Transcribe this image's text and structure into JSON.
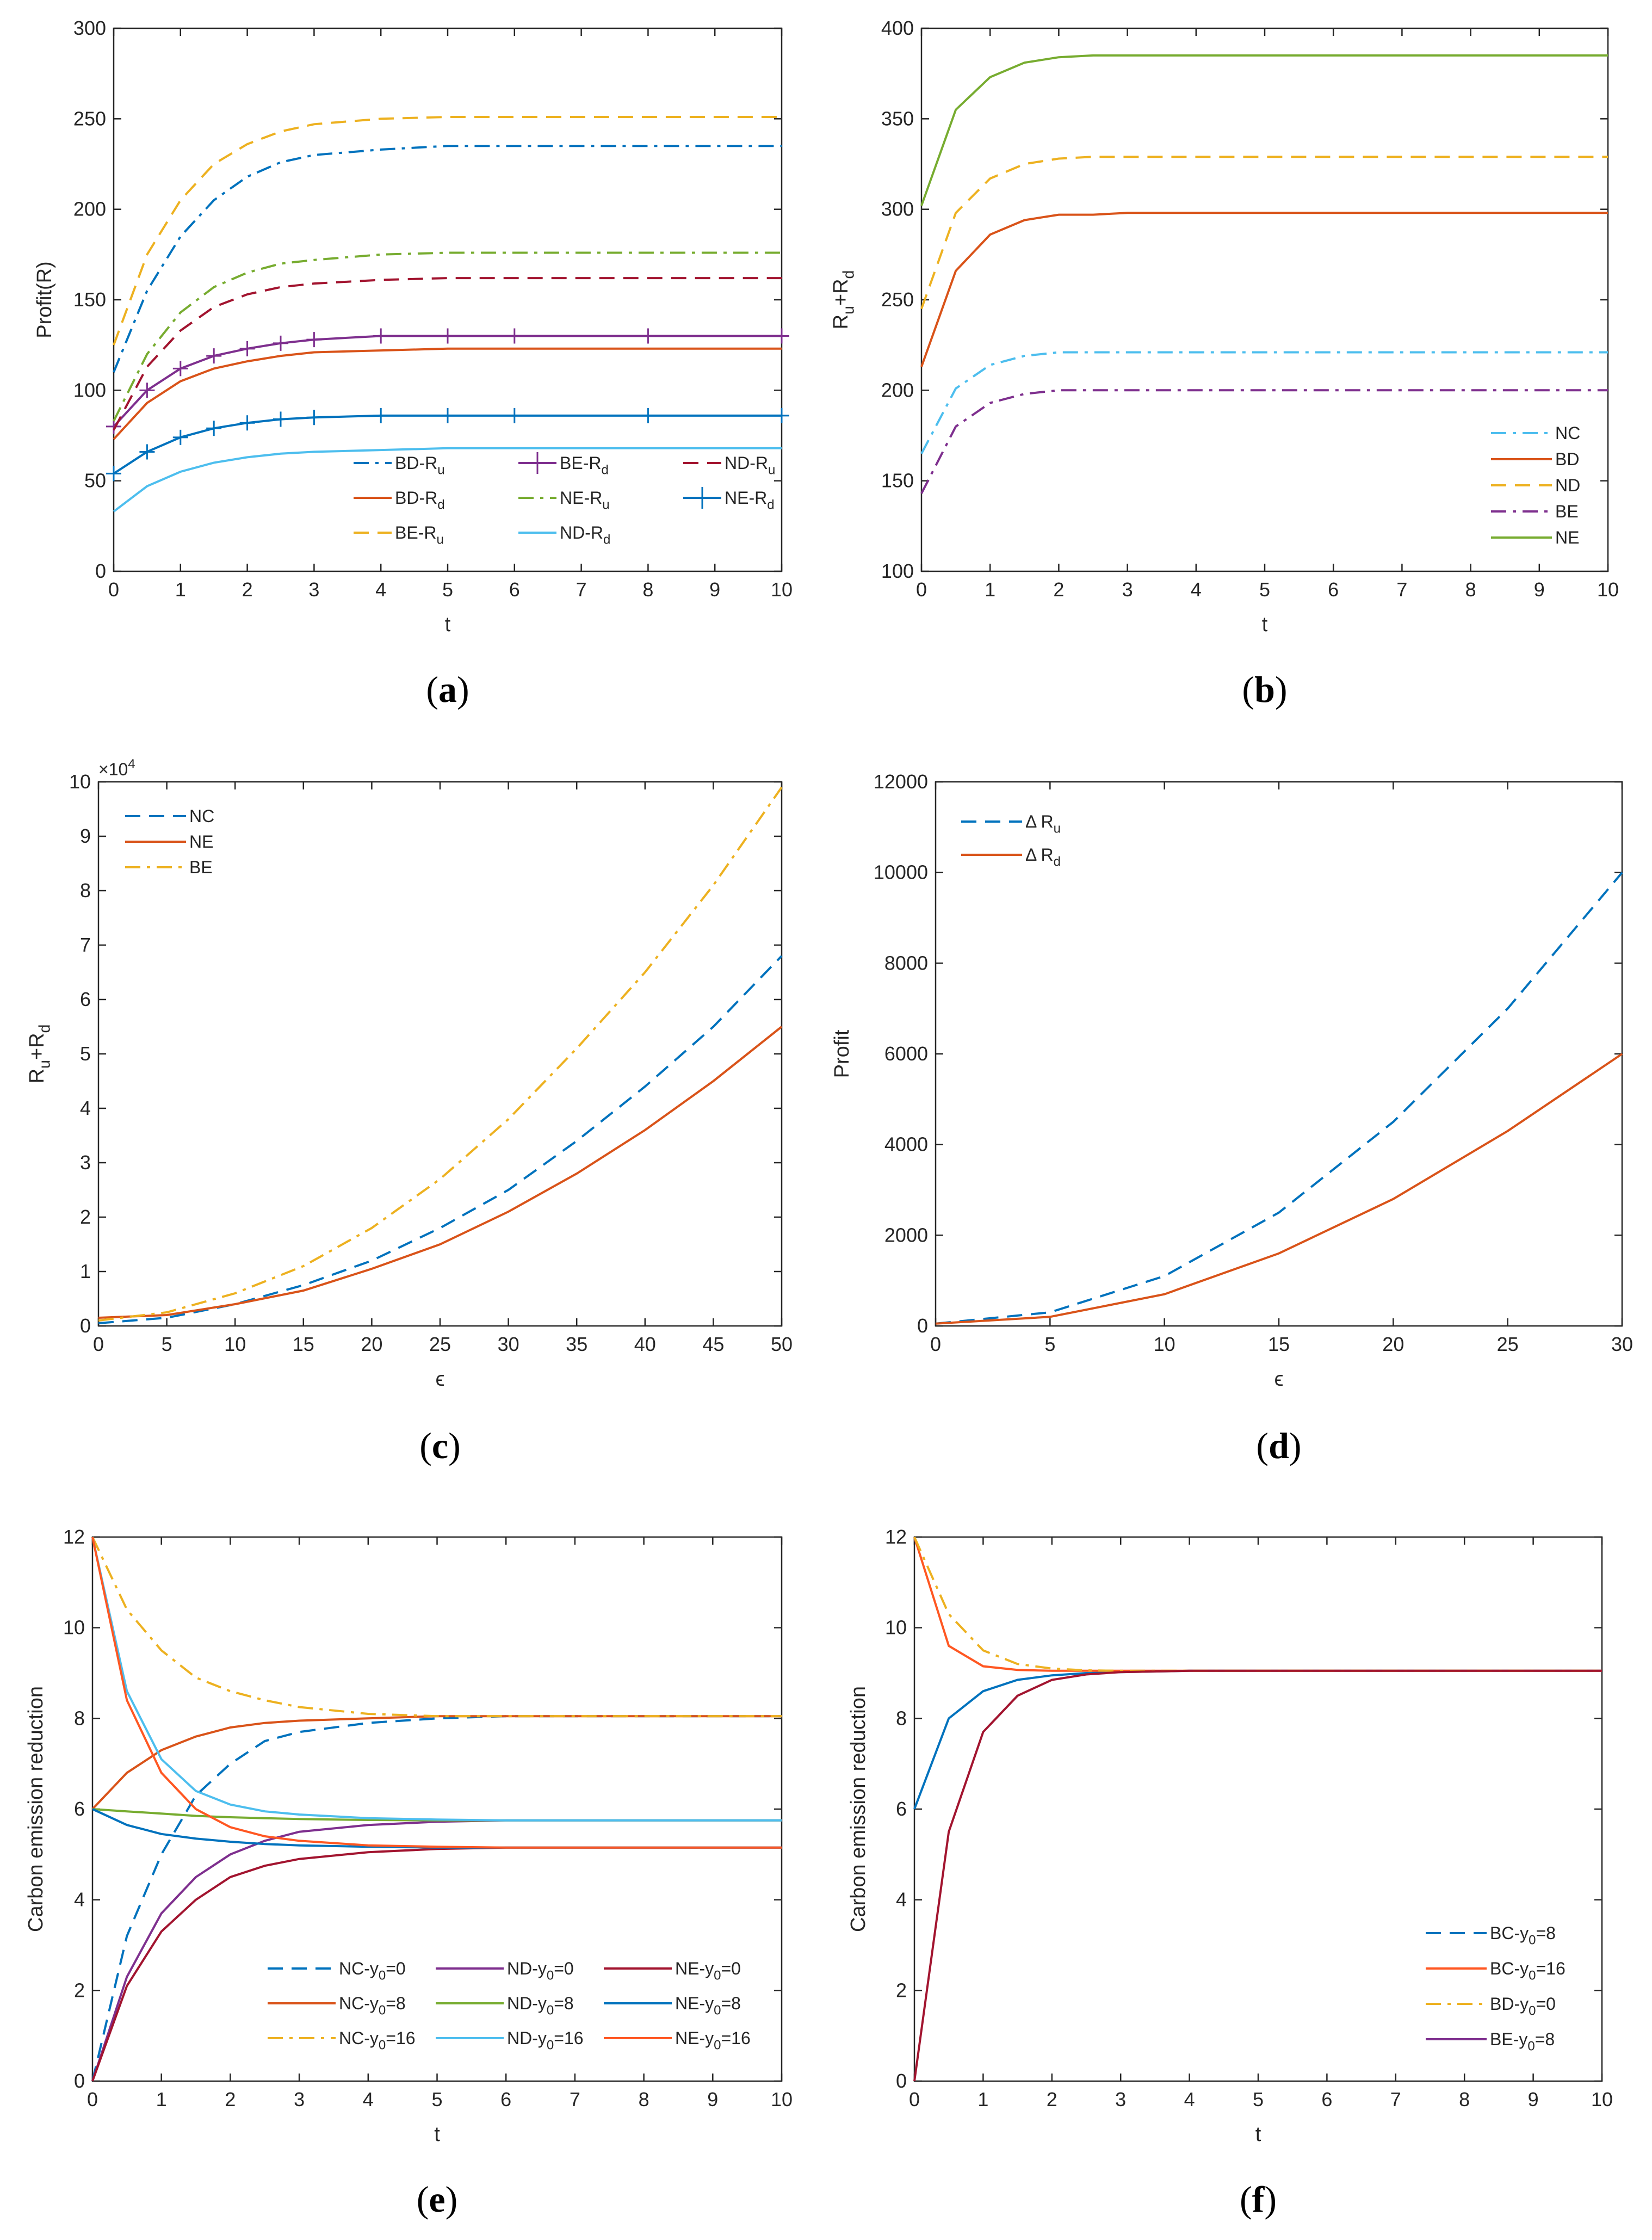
{
  "chart_data": [
    {
      "id": "a",
      "type": "line",
      "caption": "(a)",
      "caption_bold": "a",
      "xlabel": "t",
      "ylabel": "Profit(R)",
      "xlim": [
        0,
        10
      ],
      "ylim": [
        0,
        300
      ],
      "xticks": [
        0,
        1,
        2,
        3,
        4,
        5,
        6,
        7,
        8,
        9,
        10
      ],
      "yticks": [
        0,
        50,
        100,
        150,
        200,
        250,
        300
      ],
      "legend_placement": "bottom-right",
      "x": [
        0,
        0.5,
        1,
        1.5,
        2,
        2.5,
        3,
        4,
        5,
        6,
        8,
        10
      ],
      "series": [
        {
          "name": "BD-R_u",
          "color": "#0072BD",
          "style": "dashdot",
          "values": [
            110,
            155,
            185,
            205,
            218,
            226,
            230,
            233,
            235,
            235,
            235,
            235
          ]
        },
        {
          "name": "BE-R_d",
          "color": "#7E2F8E",
          "style": "solid",
          "marker": "+",
          "values": [
            80,
            100,
            112,
            119,
            123,
            126,
            128,
            130,
            130,
            130,
            130,
            130
          ]
        },
        {
          "name": "ND-R_u",
          "color": "#A2142F",
          "style": "dashed",
          "values": [
            78,
            113,
            133,
            146,
            153,
            157,
            159,
            161,
            162,
            162,
            162,
            162
          ]
        },
        {
          "name": "BD-R_d",
          "color": "#D95319",
          "style": "solid",
          "values": [
            73,
            93,
            105,
            112,
            116,
            119,
            121,
            122,
            123,
            123,
            123,
            123
          ]
        },
        {
          "name": "NE-R_u",
          "color": "#77AC30",
          "style": "dashdot",
          "values": [
            83,
            120,
            143,
            157,
            165,
            170,
            172,
            175,
            176,
            176,
            176,
            176
          ]
        },
        {
          "name": "NE-R_d",
          "color": "#0072BD",
          "style": "solid",
          "marker": "+",
          "values": [
            54,
            66,
            74,
            79,
            82,
            84,
            85,
            86,
            86,
            86,
            86,
            86
          ]
        },
        {
          "name": "BE-R_u",
          "color": "#EDB120",
          "style": "dashed",
          "values": [
            125,
            175,
            205,
            225,
            236,
            243,
            247,
            250,
            251,
            251,
            251,
            251
          ]
        },
        {
          "name": "ND-R_d",
          "color": "#4DBEEE",
          "style": "solid",
          "values": [
            33,
            47,
            55,
            60,
            63,
            65,
            66,
            67,
            68,
            68,
            68,
            68
          ]
        }
      ]
    },
    {
      "id": "b",
      "type": "line",
      "caption": "(b)",
      "caption_bold": "b",
      "xlabel": "t",
      "ylabel": "R_u+R_d",
      "xlim": [
        0,
        10
      ],
      "ylim": [
        100,
        400
      ],
      "xticks": [
        0,
        1,
        2,
        3,
        4,
        5,
        6,
        7,
        8,
        9,
        10
      ],
      "yticks": [
        100,
        150,
        200,
        250,
        300,
        350,
        400
      ],
      "legend_placement": "bottom-right",
      "x": [
        0,
        0.5,
        1,
        1.5,
        2,
        2.5,
        3,
        4,
        5,
        6,
        8,
        10
      ],
      "series": [
        {
          "name": "NC",
          "color": "#4DBEEE",
          "style": "dashdot",
          "values": [
            165,
            201,
            214,
            219,
            221,
            221,
            221,
            221,
            221,
            221,
            221,
            221
          ]
        },
        {
          "name": "BD",
          "color": "#D95319",
          "style": "solid",
          "values": [
            213,
            266,
            286,
            294,
            297,
            297,
            298,
            298,
            298,
            298,
            298,
            298
          ]
        },
        {
          "name": "ND",
          "color": "#EDB120",
          "style": "dashed",
          "values": [
            245,
            298,
            317,
            325,
            328,
            329,
            329,
            329,
            329,
            329,
            329,
            329
          ]
        },
        {
          "name": "BE",
          "color": "#7E2F8E",
          "style": "dashdot",
          "values": [
            143,
            180,
            193,
            198,
            200,
            200,
            200,
            200,
            200,
            200,
            200,
            200
          ]
        },
        {
          "name": "NE",
          "color": "#77AC30",
          "style": "solid",
          "values": [
            302,
            355,
            373,
            381,
            384,
            385,
            385,
            385,
            385,
            385,
            385,
            385
          ]
        }
      ]
    },
    {
      "id": "c",
      "type": "line",
      "caption": "(c)",
      "caption_bold": "c",
      "xlabel": "ϵ",
      "ylabel": "R_u+R_d",
      "multiplier": "×10^4",
      "xlim": [
        0,
        50
      ],
      "ylim": [
        0,
        10
      ],
      "xticks": [
        0,
        5,
        10,
        15,
        20,
        25,
        30,
        35,
        40,
        45,
        50
      ],
      "yticks": [
        0,
        1,
        2,
        3,
        4,
        5,
        6,
        7,
        8,
        9,
        10
      ],
      "legend_placement": "top-left",
      "x": [
        0,
        5,
        10,
        15,
        20,
        25,
        30,
        35,
        40,
        45,
        50
      ],
      "series": [
        {
          "name": "NC",
          "color": "#0072BD",
          "style": "dashed",
          "values": [
            0.05,
            0.15,
            0.4,
            0.75,
            1.2,
            1.8,
            2.5,
            3.4,
            4.4,
            5.5,
            6.8
          ]
        },
        {
          "name": "NE",
          "color": "#D95319",
          "style": "solid",
          "values": [
            0.15,
            0.2,
            0.4,
            0.65,
            1.05,
            1.5,
            2.1,
            2.8,
            3.6,
            4.5,
            5.5
          ]
        },
        {
          "name": "BE",
          "color": "#EDB120",
          "style": "dashdot",
          "values": [
            0.1,
            0.25,
            0.6,
            1.1,
            1.8,
            2.7,
            3.8,
            5.1,
            6.5,
            8.1,
            9.9
          ]
        }
      ]
    },
    {
      "id": "d",
      "type": "line",
      "caption": "(d)",
      "caption_bold": "d",
      "xlabel": "ϵ",
      "ylabel": "Profit",
      "xlim": [
        0,
        30
      ],
      "ylim": [
        0,
        12000
      ],
      "xticks": [
        0,
        5,
        10,
        15,
        20,
        25,
        30
      ],
      "yticks": [
        0,
        2000,
        4000,
        6000,
        8000,
        10000,
        12000
      ],
      "legend_placement": "top-left",
      "x": [
        0,
        5,
        10,
        15,
        20,
        25,
        30
      ],
      "series": [
        {
          "name": "Δ R_u",
          "color": "#0072BD",
          "style": "dashed",
          "values": [
            50,
            300,
            1100,
            2500,
            4500,
            7000,
            10000
          ]
        },
        {
          "name": "Δ R_d",
          "color": "#D95319",
          "style": "solid",
          "values": [
            50,
            200,
            700,
            1600,
            2800,
            4300,
            6000
          ]
        }
      ]
    },
    {
      "id": "e",
      "type": "line",
      "caption": "(e)",
      "caption_bold": "e",
      "xlabel": "t",
      "ylabel": "Carbon emission reduction",
      "xlim": [
        0,
        10
      ],
      "ylim": [
        0,
        12
      ],
      "xticks": [
        0,
        1,
        2,
        3,
        4,
        5,
        6,
        7,
        8,
        9,
        10
      ],
      "yticks": [
        0,
        2,
        4,
        6,
        8,
        10,
        12
      ],
      "legend_placement": "bottom-right",
      "x": [
        0,
        0.5,
        1,
        1.5,
        2,
        2.5,
        3,
        4,
        5,
        6,
        8,
        10
      ],
      "series": [
        {
          "name": "NC-y_0=0",
          "color": "#0072BD",
          "style": "dashed",
          "values": [
            0,
            3.2,
            5,
            6.3,
            7.0,
            7.5,
            7.7,
            7.9,
            8.0,
            8.05,
            8.05,
            8.05
          ]
        },
        {
          "name": "ND-y_0=0",
          "color": "#7E2F8E",
          "style": "solid",
          "values": [
            0,
            2.3,
            3.7,
            4.5,
            5.0,
            5.3,
            5.5,
            5.65,
            5.72,
            5.75,
            5.75,
            5.75
          ]
        },
        {
          "name": "NE-y_0=0",
          "color": "#A2142F",
          "style": "solid",
          "values": [
            0,
            2.1,
            3.3,
            4.0,
            4.5,
            4.75,
            4.9,
            5.05,
            5.12,
            5.15,
            5.15,
            5.15
          ]
        },
        {
          "name": "NC-y_0=8",
          "color": "#D95319",
          "style": "solid",
          "values": [
            6,
            6.8,
            7.3,
            7.6,
            7.8,
            7.9,
            7.95,
            8.0,
            8.05,
            8.05,
            8.05,
            8.05
          ]
        },
        {
          "name": "ND-y_0=8",
          "color": "#77AC30",
          "style": "solid",
          "values": [
            6,
            5.95,
            5.9,
            5.85,
            5.82,
            5.8,
            5.78,
            5.76,
            5.75,
            5.75,
            5.75,
            5.75
          ]
        },
        {
          "name": "NE-y_0=8",
          "color": "#0072BD",
          "style": "solid",
          "values": [
            6,
            5.65,
            5.45,
            5.35,
            5.28,
            5.23,
            5.2,
            5.17,
            5.15,
            5.15,
            5.15,
            5.15
          ]
        },
        {
          "name": "NC-y_0=16",
          "color": "#EDB120",
          "style": "dashdot",
          "values": [
            12,
            10.4,
            9.5,
            8.9,
            8.6,
            8.4,
            8.25,
            8.1,
            8.05,
            8.05,
            8.05,
            8.05
          ]
        },
        {
          "name": "ND-y_0=16",
          "color": "#4DBEEE",
          "style": "solid",
          "values": [
            12,
            8.6,
            7.1,
            6.4,
            6.1,
            5.95,
            5.88,
            5.8,
            5.77,
            5.75,
            5.75,
            5.75
          ]
        },
        {
          "name": "NE-y_0=16",
          "color": "#FF5722",
          "style": "solid",
          "values": [
            12,
            8.4,
            6.8,
            6.0,
            5.6,
            5.4,
            5.3,
            5.2,
            5.17,
            5.15,
            5.15,
            5.15
          ]
        }
      ]
    },
    {
      "id": "f",
      "type": "line",
      "caption": "(f)",
      "caption_bold": "f",
      "xlabel": "t",
      "ylabel": "Carbon emission reduction",
      "xlim": [
        0,
        10
      ],
      "ylim": [
        0,
        12
      ],
      "xticks": [
        0,
        1,
        2,
        3,
        4,
        5,
        6,
        7,
        8,
        9,
        10
      ],
      "yticks": [
        0,
        2,
        4,
        6,
        8,
        10,
        12
      ],
      "legend_placement": "bottom-right",
      "x": [
        0,
        0.5,
        1,
        1.5,
        2,
        2.5,
        3,
        4,
        5,
        6,
        8,
        10
      ],
      "series": [
        {
          "name": "BC-y_0=8",
          "color": "#0072BD",
          "style": "solid",
          "legend_style": "dashed",
          "values": [
            6,
            8.0,
            8.6,
            8.85,
            8.95,
            9.0,
            9.02,
            9.05,
            9.05,
            9.05,
            9.05,
            9.05
          ]
        },
        {
          "name": "BC-y_0=16",
          "color": "#FF5722",
          "style": "solid",
          "values": [
            12,
            9.6,
            9.15,
            9.07,
            9.05,
            9.05,
            9.05,
            9.05,
            9.05,
            9.05,
            9.05,
            9.05
          ]
        },
        {
          "name": "BD-y_0=0",
          "color": "#EDB120",
          "style": "dashdot",
          "values": [
            12,
            10.3,
            9.5,
            9.2,
            9.1,
            9.06,
            9.05,
            9.05,
            9.05,
            9.05,
            9.05,
            9.05
          ]
        },
        {
          "name": "BE-y_0=8",
          "color": "#A2142F",
          "legend_color": "#7E2F8E",
          "style": "solid",
          "values": [
            0,
            5.5,
            7.7,
            8.5,
            8.85,
            8.97,
            9.02,
            9.05,
            9.05,
            9.05,
            9.05,
            9.05
          ]
        }
      ]
    }
  ]
}
